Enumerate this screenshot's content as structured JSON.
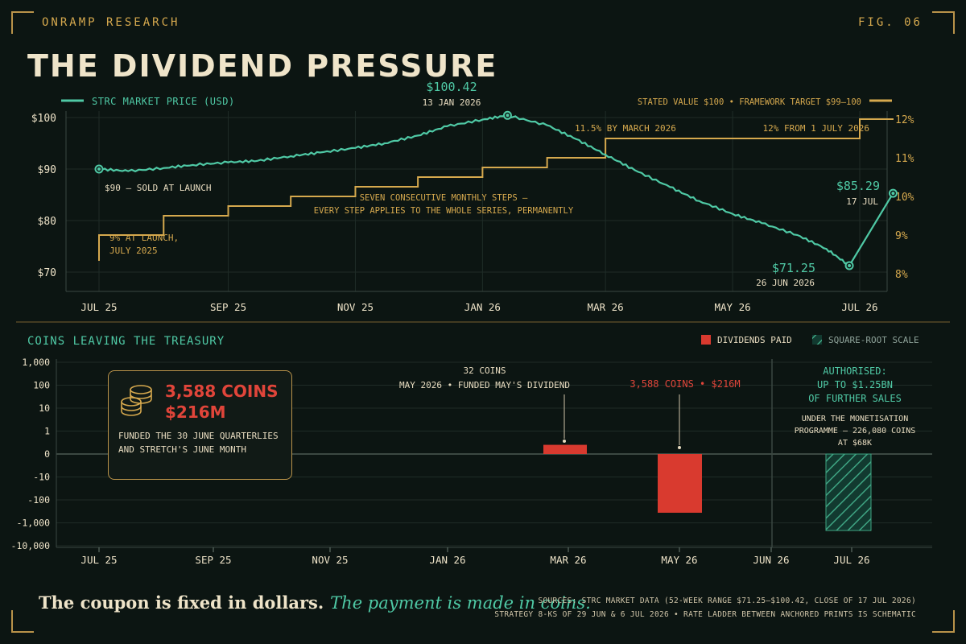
{
  "header": {
    "brand": "ONRAMP RESEARCH",
    "fig": "FIG. 06",
    "title": "THE DIVIDEND PRESSURE"
  },
  "colors": {
    "price": "#4fc9a5",
    "rate": "#d6a94e",
    "dividend": "#d93a2f",
    "hatch": "#2f8e73",
    "grid": "#1f2c27"
  },
  "price_chart": {
    "legend_price": "STRC MARKET PRICE (USD)",
    "legend_rate": "STATED VALUE $100 • FRAMEWORK TARGET $99–100",
    "peak_value": "$100.42",
    "peak_date": "13 JAN 2026",
    "launch_label": "$90 – SOLD AT LAUNCH",
    "launch_rate_lines": [
      "9% AT LAUNCH,",
      "JULY 2025"
    ],
    "steps_note_lines": [
      "SEVEN CONSECUTIVE MONTHLY STEPS –",
      "EVERY STEP APPLIES TO THE WHOLE SERIES, PERMANENTLY"
    ],
    "march_label": "11.5% BY MARCH 2026",
    "july_label": "12% FROM 1 JULY 2026",
    "low_value": "$71.25",
    "low_date": "26 JUN 2026",
    "last_value": "$85.29",
    "last_date": "17 JUL"
  },
  "dividend_chart": {
    "heading": "COINS LEAVING THE TREASURY",
    "legend_paid": "DIVIDENDS PAID",
    "legend_scale": "SQUARE-ROOT SCALE",
    "may_note_lines": [
      "32 COINS",
      "MAY 2026 • FUNDED MAY'S DIVIDEND"
    ],
    "june_note": "3,588 COINS • $216M",
    "authorised_lines": [
      "AUTHORISED:",
      "UP TO $1.25BN",
      "OF FURTHER SALES"
    ],
    "programme_lines": [
      "UNDER THE MONETISATION",
      "PROGRAMME – 226,080 COINS",
      "AT $68K"
    ]
  },
  "callout": {
    "line1": "3,588 COINS",
    "line2": "$216M",
    "desc_lines": [
      "FUNDED THE 30 JUNE QUARTERLIES",
      "AND STRETCH'S JUNE MONTH"
    ]
  },
  "footer": {
    "tagline_a": "The coupon is fixed in dollars.",
    "tagline_b": "The payment is made in coins.",
    "sources_1": "SOURCES: STRC MARKET DATA (52-WEEK RANGE $71.25–$100.42, CLOSE OF 17 JUL 2026)",
    "sources_2": "STRATEGY 8-KS OF 29 JUN & 6 JUL 2026 • RATE LADDER BETWEEN ANCHORED PRINTS IS SCHEMATIC"
  },
  "chart_data": [
    {
      "type": "line",
      "title": "THE DIVIDEND PRESSURE",
      "x_ticks": [
        "JUL 25",
        "SEP 25",
        "NOV 25",
        "JAN 26",
        "MAR 26",
        "MAY 26",
        "JUL 26"
      ],
      "ylim": [
        70,
        100
      ],
      "y_ticks": [
        "$100",
        "$90",
        "$80",
        "$70"
      ],
      "y2lim": [
        8,
        12
      ],
      "y2_ticks": [
        "12%",
        "11%",
        "10%",
        "9%",
        "8%"
      ],
      "series": [
        {
          "name": "STRC MARKET PRICE (USD)",
          "x": [
            "2025-07-01",
            "2025-07-15",
            "2025-08-01",
            "2025-08-15",
            "2025-09-01",
            "2025-09-15",
            "2025-10-01",
            "2025-10-15",
            "2025-11-01",
            "2025-11-15",
            "2025-12-01",
            "2025-12-15",
            "2026-01-01",
            "2026-01-13",
            "2026-02-01",
            "2026-02-15",
            "2026-03-01",
            "2026-03-15",
            "2026-04-01",
            "2026-04-15",
            "2026-05-01",
            "2026-05-15",
            "2026-06-01",
            "2026-06-15",
            "2026-06-26",
            "2026-07-17"
          ],
          "values": [
            90,
            89.6,
            90.2,
            90.8,
            91.3,
            91.6,
            92.5,
            93.2,
            94.1,
            95.0,
            96.5,
            98.3,
            99.6,
            100.42,
            98.5,
            95.8,
            92.8,
            89.8,
            86.5,
            83.8,
            81.3,
            79.5,
            77.2,
            74.5,
            71.25,
            85.29
          ]
        },
        {
          "name": "STATED VALUE $100 • FRAMEWORK TARGET $99–100",
          "axis": "right",
          "x": [
            "2025-07-01",
            "2025-08-01",
            "2025-09-01",
            "2025-10-01",
            "2025-11-01",
            "2025-12-01",
            "2026-01-01",
            "2026-02-01",
            "2026-03-01",
            "2026-07-01",
            "2026-07-17"
          ],
          "values": [
            9.0,
            9.5,
            9.75,
            10.0,
            10.25,
            10.5,
            10.75,
            11.0,
            11.5,
            12.0,
            12.0
          ]
        }
      ]
    },
    {
      "type": "bar",
      "scale": "sqrt",
      "y_ticks": [
        "1,000",
        "100",
        "10",
        "1",
        "0",
        "-10",
        "-100",
        "-1,000",
        "-10,000"
      ],
      "x_ticks": [
        "JUL 25",
        "SEP 25",
        "NOV 25",
        "JAN 26",
        "MAR 26",
        "MAY 26",
        "JUN 26",
        "JUL 26"
      ],
      "series": [
        {
          "name": "DIVIDENDS PAID",
          "categories": [
            "MAY 2026",
            "JUN 2026"
          ],
          "values": [
            32,
            -3588
          ]
        },
        {
          "name": "Authorised",
          "categories": [
            "JUL 2026"
          ],
          "values": [
            -226080
          ]
        }
      ]
    }
  ]
}
